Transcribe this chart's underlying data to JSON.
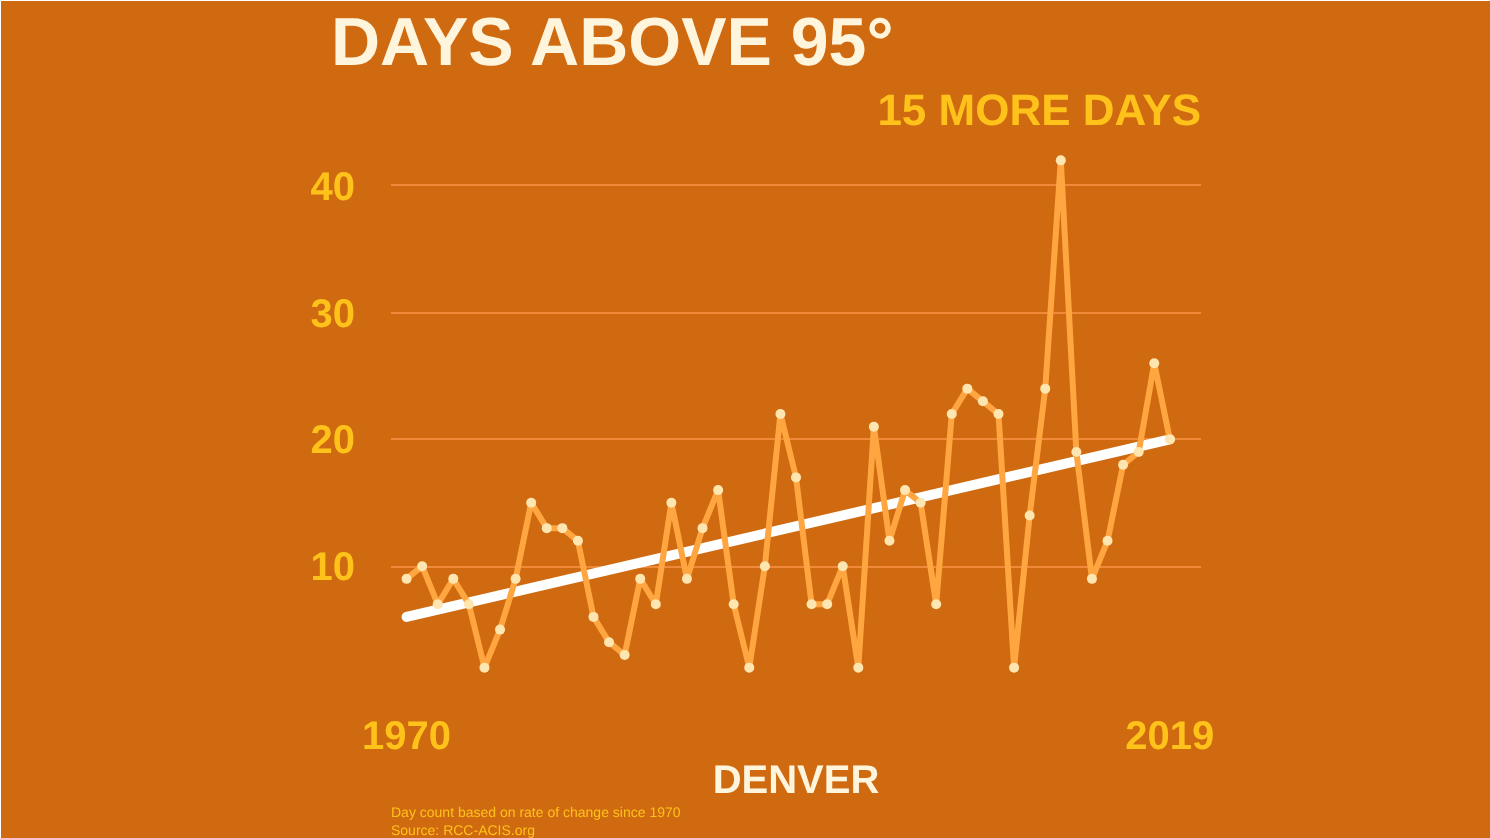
{
  "chart_data": {
    "type": "line",
    "title": "DAYS ABOVE 95°",
    "annotations": [
      "15 MORE DAYS",
      "DENVER",
      "Day count based on rate of change since 1970",
      "Source: RCC-ACIS.org"
    ],
    "x": [
      1970,
      1971,
      1972,
      1973,
      1974,
      1975,
      1976,
      1977,
      1978,
      1979,
      1980,
      1981,
      1982,
      1983,
      1984,
      1985,
      1986,
      1987,
      1988,
      1989,
      1990,
      1991,
      1992,
      1993,
      1994,
      1995,
      1996,
      1997,
      1998,
      1999,
      2000,
      2001,
      2002,
      2003,
      2004,
      2005,
      2006,
      2007,
      2008,
      2009,
      2010,
      2011,
      2012,
      2013,
      2014,
      2015,
      2016,
      2017,
      2018,
      2019
    ],
    "xlim": [
      1969,
      2021
    ],
    "xticks": [
      1970,
      2019
    ],
    "ylim": [
      0,
      44
    ],
    "yticks": [
      10,
      20,
      30,
      40
    ],
    "grid": "y",
    "marker": "circle",
    "line_style": "solid",
    "series": [
      {
        "color": "#ffa640",
        "values": [
          9,
          10,
          7,
          9,
          7,
          2,
          5,
          9,
          15,
          13,
          13,
          12,
          6,
          4,
          3,
          9,
          7,
          15,
          9,
          13,
          16,
          7,
          2,
          10,
          22,
          17,
          7,
          7,
          10,
          2,
          21,
          12,
          16,
          15,
          7,
          22,
          24,
          23,
          22,
          2,
          14,
          24,
          42,
          19,
          9,
          12,
          18,
          19,
          26,
          20
        ]
      },
      {
        "color": "#ffffff",
        "x": [
          1970,
          2019
        ],
        "values": [
          6,
          20
        ],
        "marker": "none"
      }
    ]
  }
}
